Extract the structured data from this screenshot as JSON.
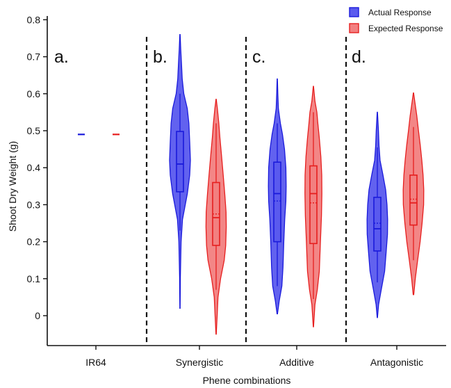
{
  "chart_data": {
    "type": "violin",
    "xlabel": "Phene combinations",
    "ylabel": "Shoot Dry Weight (g)",
    "ylim": [
      -0.08,
      0.8
    ],
    "y_ticks": [
      "0",
      "0.1",
      "0.2",
      "0.3",
      "0.4",
      "0.5",
      "0.6",
      "0.7",
      "0.8"
    ],
    "y_tick_values": [
      0,
      0.1,
      0.2,
      0.3,
      0.4,
      0.5,
      0.6,
      0.7,
      0.8
    ],
    "categories": [
      "IR64",
      "Synergistic",
      "Additive",
      "Antagonistic"
    ],
    "panel_letters": [
      "a.",
      "b.",
      "c.",
      "d."
    ],
    "legend_position": "top-right",
    "grid": false,
    "series": [
      {
        "name": "Actual Response",
        "color": "#1a1adb",
        "fill": "#5a5aee",
        "values": [
          {
            "category": "IR64",
            "point": 0.49
          },
          {
            "category": "Synergistic",
            "min": 0.02,
            "q1": 0.335,
            "median": 0.41,
            "mean": 0.41,
            "q3": 0.498,
            "max": 0.76,
            "whisker_low": 0.23,
            "whisker_high": 0.6,
            "density": [
              [
                0.02,
                0.2
              ],
              [
                0.1,
                0.5
              ],
              [
                0.2,
                1.6
              ],
              [
                0.26,
                3.6
              ],
              [
                0.33,
                10.6
              ],
              [
                0.38,
                14.0
              ],
              [
                0.42,
                15.0
              ],
              [
                0.47,
                14.0
              ],
              [
                0.52,
                12.8
              ],
              [
                0.56,
                10.5
              ],
              [
                0.6,
                5.5
              ],
              [
                0.64,
                3.2
              ],
              [
                0.68,
                2.2
              ],
              [
                0.72,
                1.1
              ],
              [
                0.76,
                0.2
              ]
            ]
          },
          {
            "category": "Additive",
            "min": 0.005,
            "q1": 0.2,
            "median": 0.33,
            "mean": 0.31,
            "q3": 0.415,
            "max": 0.64,
            "whisker_low": 0.08,
            "whisker_high": 0.52,
            "density": [
              [
                0.005,
                0.3
              ],
              [
                0.04,
                2.8
              ],
              [
                0.08,
                6.6
              ],
              [
                0.13,
                8.2
              ],
              [
                0.2,
                9.4
              ],
              [
                0.26,
                10.7
              ],
              [
                0.31,
                12.4
              ],
              [
                0.35,
                12.8
              ],
              [
                0.4,
                12.4
              ],
              [
                0.45,
                10.4
              ],
              [
                0.49,
                7.5
              ],
              [
                0.52,
                4.5
              ],
              [
                0.56,
                1.6
              ],
              [
                0.6,
                0.8
              ],
              [
                0.64,
                0.2
              ]
            ]
          },
          {
            "category": "Antagonistic",
            "min": -0.005,
            "q1": 0.175,
            "median": 0.235,
            "mean": 0.25,
            "q3": 0.32,
            "max": 0.55,
            "whisker_low": 0.09,
            "whisker_high": 0.455,
            "density": [
              [
                -0.005,
                0.2
              ],
              [
                0.03,
                1.8
              ],
              [
                0.07,
                5.6
              ],
              [
                0.12,
                10.5
              ],
              [
                0.17,
                12.6
              ],
              [
                0.22,
                14.6
              ],
              [
                0.26,
                14.8
              ],
              [
                0.3,
                13.9
              ],
              [
                0.34,
                12.0
              ],
              [
                0.38,
                8.1
              ],
              [
                0.42,
                3.9
              ],
              [
                0.46,
                2.4
              ],
              [
                0.5,
                1.6
              ],
              [
                0.55,
                0.2
              ]
            ]
          }
        ]
      },
      {
        "name": "Expected Response",
        "color": "#e61e1e",
        "fill": "#f28080",
        "values": [
          {
            "category": "IR64",
            "point": 0.49
          },
          {
            "category": "Synergistic",
            "min": -0.05,
            "q1": 0.19,
            "median": 0.265,
            "mean": 0.275,
            "q3": 0.36,
            "max": 0.585,
            "whisker_low": 0.07,
            "whisker_high": 0.52,
            "density": [
              [
                -0.05,
                0.2
              ],
              [
                0.0,
                1.5
              ],
              [
                0.05,
                2.7
              ],
              [
                0.1,
                6.4
              ],
              [
                0.15,
                11.7
              ],
              [
                0.19,
                13.8
              ],
              [
                0.24,
                14.6
              ],
              [
                0.28,
                14.3
              ],
              [
                0.33,
                12.4
              ],
              [
                0.38,
                10.2
              ],
              [
                0.43,
                7.9
              ],
              [
                0.48,
                5.5
              ],
              [
                0.52,
                3.9
              ],
              [
                0.56,
                1.8
              ],
              [
                0.585,
                0.2
              ]
            ]
          },
          {
            "category": "Additive",
            "min": -0.03,
            "q1": 0.195,
            "median": 0.33,
            "mean": 0.305,
            "q3": 0.405,
            "max": 0.62,
            "whisker_low": 0.045,
            "whisker_high": 0.55,
            "density": [
              [
                -0.03,
                0.2
              ],
              [
                0.03,
                2.2
              ],
              [
                0.07,
                5.6
              ],
              [
                0.12,
                8.5
              ],
              [
                0.2,
                10.1
              ],
              [
                0.27,
                11.6
              ],
              [
                0.33,
                12.2
              ],
              [
                0.38,
                12.0
              ],
              [
                0.43,
                10.7
              ],
              [
                0.48,
                8.5
              ],
              [
                0.52,
                6.4
              ],
              [
                0.55,
                5.0
              ],
              [
                0.58,
                2.2
              ],
              [
                0.62,
                0.2
              ]
            ]
          },
          {
            "category": "Antagonistic",
            "min": 0.057,
            "q1": 0.245,
            "median": 0.305,
            "mean": 0.315,
            "q3": 0.38,
            "max": 0.602,
            "whisker_low": 0.15,
            "whisker_high": 0.51,
            "density": [
              [
                0.057,
                0.4
              ],
              [
                0.1,
                2.6
              ],
              [
                0.15,
                6.0
              ],
              [
                0.2,
                9.6
              ],
              [
                0.25,
                12.4
              ],
              [
                0.3,
                14.6
              ],
              [
                0.34,
                14.8
              ],
              [
                0.38,
                13.8
              ],
              [
                0.42,
                12.0
              ],
              [
                0.46,
                9.8
              ],
              [
                0.5,
                7.2
              ],
              [
                0.54,
                4.8
              ],
              [
                0.58,
                1.8
              ],
              [
                0.602,
                0.2
              ]
            ]
          }
        ]
      }
    ]
  }
}
